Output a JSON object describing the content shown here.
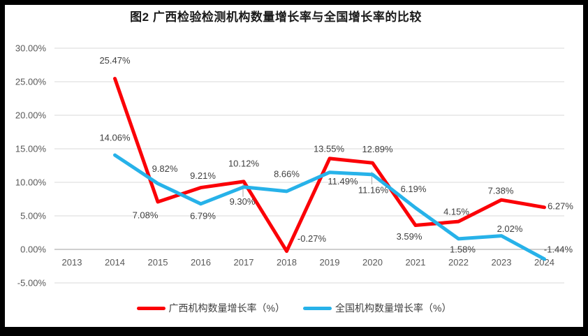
{
  "title": "图2 广西检验检测机构数量增长率与全国增长率的比较",
  "colors": {
    "guangxi": "#fb0007",
    "national": "#27b2e9",
    "gridline": "#d9d9d9",
    "axis_line": "#bfbfbf",
    "tick_text": "#595959",
    "label_text": "#404040",
    "frame": "#000000",
    "background": "#ffffff"
  },
  "chart_data": {
    "type": "line",
    "title": "图2 广西检验检测机构数量增长率与全国增长率的比较",
    "x": [
      "2013",
      "2014",
      "2015",
      "2016",
      "2017",
      "2018",
      "2019",
      "2020",
      "2021",
      "2022",
      "2023",
      "2024"
    ],
    "series": [
      {
        "name": "广西机构数量增长率（%）",
        "color_key": "guangxi",
        "values": [
          null,
          25.47,
          7.08,
          9.21,
          10.12,
          -0.27,
          13.55,
          12.89,
          3.59,
          4.15,
          7.38,
          6.27
        ]
      },
      {
        "name": "全国机构数量增长率（%）",
        "color_key": "national",
        "values": [
          null,
          14.06,
          9.82,
          6.79,
          9.3,
          8.66,
          11.49,
          11.16,
          6.19,
          1.58,
          2.02,
          -1.44
        ]
      }
    ],
    "y_axis": {
      "ticks": [
        "30.00%",
        "25.00%",
        "20.00%",
        "15.00%",
        "10.00%",
        "5.00%",
        "0.00%",
        "-5.00%"
      ],
      "tick_values": [
        30,
        25,
        20,
        15,
        10,
        5,
        0,
        -5
      ],
      "min": -5,
      "max": 30
    },
    "xlabel": "",
    "ylabel": "",
    "grid": true,
    "label_format": "0.00%",
    "legend_position": "bottom"
  },
  "legend": {
    "items": [
      {
        "label": "广西机构数量增长率（%）",
        "color_key": "guangxi"
      },
      {
        "label": "全国机构数量增长率（%）",
        "color_key": "national"
      }
    ]
  }
}
